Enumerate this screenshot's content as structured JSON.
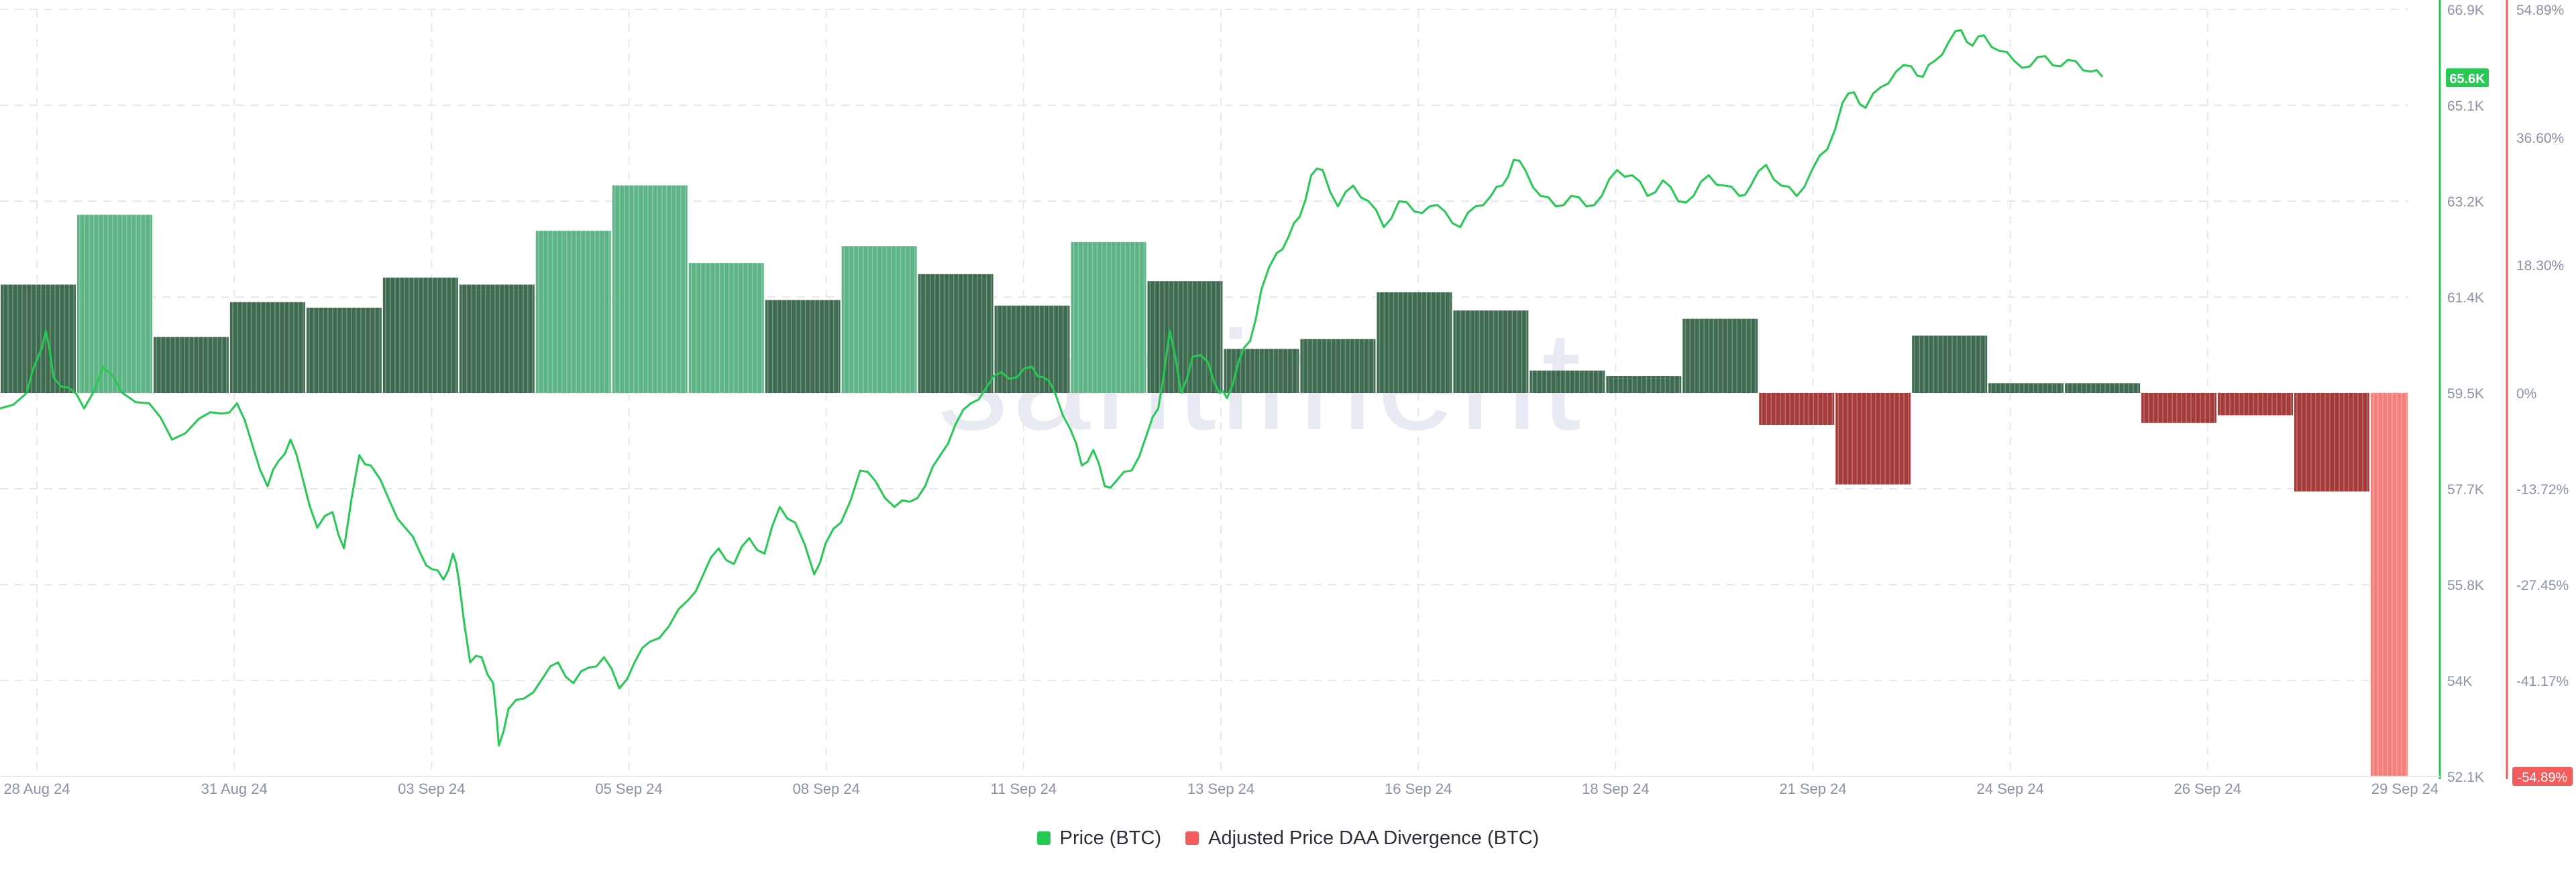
{
  "watermark": "santiment",
  "colors": {
    "price_line": "#26c953",
    "bar_green_light": "#5db585",
    "bar_green_dark": "#3e6b50",
    "bar_red_dark": "#a53a3a",
    "bar_red_light": "#f57f7f",
    "left_axis": "#26c953",
    "right_axis": "#f25c5c",
    "grid": "#e6e8ee",
    "tick_text": "#8a92a6"
  },
  "legend": {
    "price_label": "Price (BTC)",
    "divergence_label": "Adjusted Price DAA Divergence (BTC)"
  },
  "chart_data": {
    "type": "line",
    "x_labels": [
      "28 Aug 24",
      "31 Aug 24",
      "03 Sep 24",
      "05 Sep 24",
      "08 Sep 24",
      "11 Sep 24",
      "13 Sep 24",
      "16 Sep 24",
      "18 Sep 24",
      "21 Sep 24",
      "24 Sep 24",
      "26 Sep 24",
      "29 Sep 24"
    ],
    "price_axis": {
      "ticks": [
        "66.9K",
        "65.1K",
        "63.2K",
        "61.4K",
        "59.5K",
        "57.7K",
        "55.8K",
        "54K",
        "52.1K"
      ],
      "min": 52100,
      "max": 66900,
      "current_label": "65.6K"
    },
    "divergence_axis": {
      "ticks": [
        "54.89%",
        "36.60%",
        "18.30%",
        "0%",
        "-13.72%",
        "-27.45%",
        "-41.17%",
        "-54.89%"
      ],
      "min": -54.89,
      "max": 54.89,
      "current_label": "-54.89%"
    },
    "price_series": {
      "name": "Price (BTC)",
      "points": [
        [
          0,
          59200
        ],
        [
          0.7,
          59500
        ],
        [
          1.0,
          60200
        ],
        [
          1.2,
          60700
        ],
        [
          1.4,
          59800
        ],
        [
          1.8,
          59600
        ],
        [
          2.2,
          59200
        ],
        [
          2.7,
          60000
        ],
        [
          3.2,
          59500
        ],
        [
          3.9,
          59300
        ],
        [
          4.5,
          58600
        ],
        [
          5.2,
          59000
        ],
        [
          5.8,
          59100
        ],
        [
          6.2,
          59300
        ],
        [
          6.6,
          58500
        ],
        [
          7.0,
          57700
        ],
        [
          7.3,
          58200
        ],
        [
          7.6,
          58600
        ],
        [
          7.9,
          57900
        ],
        [
          8.3,
          56900
        ],
        [
          8.7,
          57200
        ],
        [
          9.0,
          56500
        ],
        [
          9.4,
          58300
        ],
        [
          9.7,
          58100
        ],
        [
          10.2,
          57400
        ],
        [
          10.6,
          56900
        ],
        [
          11.0,
          56400
        ],
        [
          11.3,
          56100
        ],
        [
          11.6,
          55900
        ],
        [
          11.85,
          56400
        ],
        [
          12.0,
          55900
        ],
        [
          12.3,
          54300
        ],
        [
          12.6,
          54400
        ],
        [
          12.9,
          53900
        ],
        [
          13.05,
          52700
        ],
        [
          13.3,
          53400
        ],
        [
          13.7,
          53600
        ],
        [
          14.2,
          54000
        ],
        [
          14.6,
          54300
        ],
        [
          15.0,
          53900
        ],
        [
          15.4,
          54200
        ],
        [
          15.8,
          54400
        ],
        [
          16.2,
          53800
        ],
        [
          16.6,
          54300
        ],
        [
          17.0,
          54700
        ],
        [
          17.5,
          55000
        ],
        [
          18.0,
          55500
        ],
        [
          18.4,
          56000
        ],
        [
          18.8,
          56500
        ],
        [
          19.2,
          56200
        ],
        [
          19.6,
          56700
        ],
        [
          20.0,
          56400
        ],
        [
          20.4,
          57300
        ],
        [
          20.8,
          57000
        ],
        [
          21.3,
          56000
        ],
        [
          21.6,
          56600
        ],
        [
          22.0,
          57000
        ],
        [
          22.5,
          58000
        ],
        [
          22.9,
          57800
        ],
        [
          23.4,
          57300
        ],
        [
          23.8,
          57400
        ],
        [
          24.2,
          57700
        ],
        [
          24.6,
          58300
        ],
        [
          25.0,
          58900
        ],
        [
          25.4,
          59300
        ],
        [
          25.8,
          59600
        ],
        [
          26.2,
          59900
        ],
        [
          26.6,
          59800
        ],
        [
          27.0,
          60000
        ],
        [
          27.3,
          59800
        ],
        [
          27.6,
          59500
        ],
        [
          28.0,
          58800
        ],
        [
          28.3,
          58100
        ],
        [
          28.6,
          58400
        ],
        [
          28.9,
          57700
        ],
        [
          29.2,
          57800
        ],
        [
          29.6,
          58000
        ],
        [
          30.0,
          58700
        ],
        [
          30.3,
          59200
        ],
        [
          30.6,
          60700
        ],
        [
          30.9,
          59500
        ],
        [
          31.2,
          60200
        ],
        [
          31.6,
          60100
        ],
        [
          31.9,
          59500
        ],
        [
          32.1,
          59400
        ],
        [
          32.4,
          60100
        ],
        [
          32.7,
          60500
        ],
        [
          33.0,
          61500
        ],
        [
          33.4,
          62200
        ],
        [
          33.7,
          62500
        ],
        [
          34.0,
          62900
        ],
        [
          34.3,
          63700
        ],
        [
          34.6,
          63800
        ],
        [
          35.0,
          63100
        ],
        [
          35.4,
          63500
        ],
        [
          35.8,
          63200
        ],
        [
          36.2,
          62700
        ],
        [
          36.6,
          63200
        ],
        [
          37.0,
          63000
        ],
        [
          37.4,
          63100
        ],
        [
          37.8,
          63000
        ],
        [
          38.2,
          62700
        ],
        [
          38.6,
          63100
        ],
        [
          39.0,
          63300
        ],
        [
          39.3,
          63500
        ],
        [
          39.6,
          64000
        ],
        [
          39.9,
          63800
        ],
        [
          40.3,
          63300
        ],
        [
          40.7,
          63100
        ],
        [
          41.1,
          63300
        ],
        [
          41.5,
          63100
        ],
        [
          41.9,
          63300
        ],
        [
          42.3,
          63800
        ],
        [
          42.7,
          63700
        ],
        [
          43.1,
          63300
        ],
        [
          43.5,
          63600
        ],
        [
          43.9,
          63200
        ],
        [
          44.3,
          63300
        ],
        [
          44.7,
          63700
        ],
        [
          45.1,
          63500
        ],
        [
          45.5,
          63300
        ],
        [
          45.8,
          63500
        ],
        [
          46.2,
          63900
        ],
        [
          46.6,
          63500
        ],
        [
          47.0,
          63300
        ],
        [
          47.4,
          63800
        ],
        [
          47.8,
          64200
        ],
        [
          48.2,
          65100
        ],
        [
          48.5,
          65300
        ],
        [
          48.8,
          65000
        ],
        [
          49.2,
          65400
        ],
        [
          49.6,
          65700
        ],
        [
          50.0,
          65800
        ],
        [
          50.3,
          65600
        ],
        [
          50.6,
          65900
        ],
        [
          51.0,
          66300
        ],
        [
          51.3,
          66500
        ],
        [
          51.6,
          66200
        ],
        [
          51.9,
          66400
        ],
        [
          52.3,
          66100
        ],
        [
          52.7,
          65900
        ],
        [
          53.1,
          65800
        ],
        [
          53.5,
          66000
        ],
        [
          53.9,
          65800
        ],
        [
          54.3,
          65900
        ],
        [
          54.7,
          65700
        ],
        [
          55.0,
          65600
        ]
      ]
    },
    "divergence_series": {
      "name": "Adjusted Price DAA Divergence (BTC)",
      "bars": [
        {
          "start": 0,
          "end": 2,
          "value": 15.5,
          "shade": "dark"
        },
        {
          "start": 2,
          "end": 4,
          "value": 25.5,
          "shade": "light"
        },
        {
          "start": 4,
          "end": 6,
          "value": 8.0,
          "shade": "dark"
        },
        {
          "start": 6,
          "end": 8,
          "value": 13.0,
          "shade": "dark"
        },
        {
          "start": 8,
          "end": 10,
          "value": 12.2,
          "shade": "dark"
        },
        {
          "start": 10,
          "end": 12,
          "value": 16.5,
          "shade": "dark"
        },
        {
          "start": 12,
          "end": 14,
          "value": 15.5,
          "shade": "dark"
        },
        {
          "start": 14,
          "end": 16,
          "value": 23.2,
          "shade": "light"
        },
        {
          "start": 16,
          "end": 18,
          "value": 29.7,
          "shade": "light"
        },
        {
          "start": 18,
          "end": 20,
          "value": 18.6,
          "shade": "light"
        },
        {
          "start": 20,
          "end": 22,
          "value": 13.3,
          "shade": "dark"
        },
        {
          "start": 22,
          "end": 24,
          "value": 21.0,
          "shade": "light"
        },
        {
          "start": 24,
          "end": 26,
          "value": 17.0,
          "shade": "dark"
        },
        {
          "start": 26,
          "end": 28,
          "value": 12.5,
          "shade": "dark"
        },
        {
          "start": 28,
          "end": 30,
          "value": 21.6,
          "shade": "light"
        },
        {
          "start": 30,
          "end": 32,
          "value": 16.0,
          "shade": "dark"
        },
        {
          "start": 32,
          "end": 34,
          "value": 6.3,
          "shade": "dark"
        },
        {
          "start": 34,
          "end": 36,
          "value": 7.7,
          "shade": "dark"
        },
        {
          "start": 36,
          "end": 38,
          "value": 14.4,
          "shade": "dark"
        },
        {
          "start": 38,
          "end": 40,
          "value": 11.8,
          "shade": "dark"
        },
        {
          "start": 40,
          "end": 42,
          "value": 3.2,
          "shade": "dark"
        },
        {
          "start": 42,
          "end": 44,
          "value": 2.4,
          "shade": "dark"
        },
        {
          "start": 44,
          "end": 46,
          "value": 10.6,
          "shade": "dark"
        },
        {
          "start": 46,
          "end": 48,
          "value": -4.6,
          "shade": "dark"
        },
        {
          "start": 48,
          "end": 50,
          "value": -13.1,
          "shade": "dark"
        },
        {
          "start": 50,
          "end": 52,
          "value": 8.2,
          "shade": "dark"
        },
        {
          "start": 52,
          "end": 54,
          "value": 1.4,
          "shade": "dark"
        },
        {
          "start": 54,
          "end": 56,
          "value": 1.4,
          "shade": "dark"
        },
        {
          "start": 56,
          "end": 58,
          "value": -4.3,
          "shade": "dark"
        },
        {
          "start": 58,
          "end": 60,
          "value": -3.2,
          "shade": "dark"
        },
        {
          "start": 60,
          "end": 62,
          "value": -14.1,
          "shade": "dark"
        },
        {
          "start": 62,
          "end": 63,
          "value": -54.89,
          "shade": "light"
        }
      ]
    },
    "grid": true,
    "legend_position": "bottom-center"
  }
}
